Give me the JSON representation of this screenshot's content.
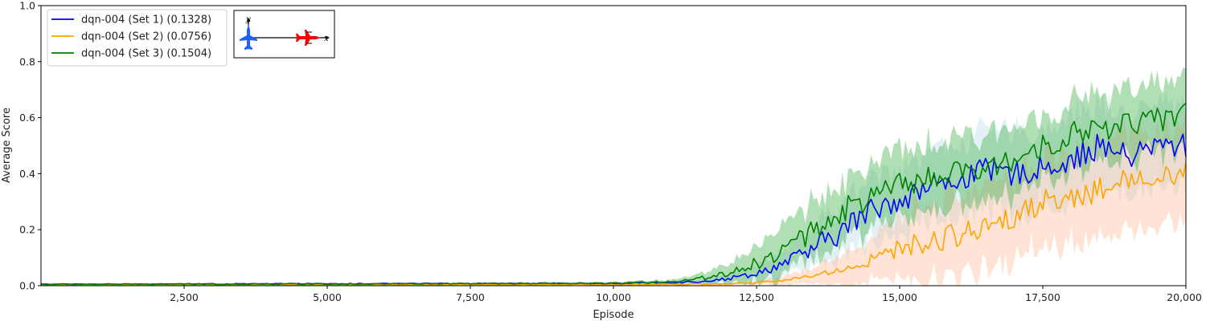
{
  "chart_data": {
    "type": "line",
    "xlabel": "Episode",
    "ylabel": "Average Score",
    "xlim": [
      0,
      20000
    ],
    "ylim": [
      0,
      1.0
    ],
    "x_ticks": [
      2500,
      5000,
      7500,
      10000,
      12500,
      15000,
      17500,
      20000
    ],
    "x_tick_labels": [
      "2,500",
      "5,000",
      "7,500",
      "10,000",
      "12,500",
      "15,000",
      "17,500",
      "20,000"
    ],
    "y_ticks": [
      0,
      0.2,
      0.4,
      0.6,
      0.8,
      1.0
    ],
    "y_tick_labels": [
      "0.0",
      "0.2",
      "0.4",
      "0.6",
      "0.8",
      "1.0"
    ],
    "grid": false,
    "legend_position": "top-left",
    "series": [
      {
        "name": "dqn-004 (Set 1) (0.1328)",
        "color": "#0000ff",
        "band_color": "#add8e6",
        "key_x": [
          0,
          10000,
          11000,
          11500,
          12000,
          12500,
          13000,
          13500,
          14000,
          14500,
          15000,
          15500,
          16000,
          16500,
          17000,
          17500,
          18000,
          18500,
          19000,
          19500,
          20000
        ],
        "key_y": [
          0.005,
          0.008,
          0.012,
          0.015,
          0.025,
          0.045,
          0.08,
          0.13,
          0.2,
          0.27,
          0.31,
          0.35,
          0.38,
          0.41,
          0.4,
          0.42,
          0.45,
          0.5,
          0.46,
          0.5,
          0.5
        ],
        "key_band": [
          0.002,
          0.003,
          0.005,
          0.008,
          0.015,
          0.03,
          0.05,
          0.07,
          0.09,
          0.11,
          0.12,
          0.13,
          0.13,
          0.14,
          0.14,
          0.14,
          0.15,
          0.15,
          0.15,
          0.15,
          0.15
        ]
      },
      {
        "name": "dqn-004 (Set 2) (0.0756)",
        "color": "#ffa500",
        "band_color": "#ffb38a",
        "key_x": [
          0,
          10000,
          11000,
          12000,
          12500,
          13000,
          13500,
          14000,
          14500,
          15000,
          15500,
          16000,
          16500,
          17000,
          17500,
          18000,
          18500,
          19000,
          19500,
          20000
        ],
        "key_y": [
          0.003,
          0.004,
          0.005,
          0.007,
          0.01,
          0.02,
          0.035,
          0.06,
          0.09,
          0.13,
          0.16,
          0.18,
          0.22,
          0.25,
          0.3,
          0.32,
          0.34,
          0.38,
          0.4,
          0.4
        ],
        "key_band": [
          0.002,
          0.002,
          0.003,
          0.004,
          0.006,
          0.015,
          0.03,
          0.05,
          0.08,
          0.11,
          0.13,
          0.14,
          0.15,
          0.15,
          0.16,
          0.16,
          0.16,
          0.17,
          0.17,
          0.17
        ]
      },
      {
        "name": "dqn-004 (Set 3) (0.1504)",
        "color": "#008000",
        "band_color": "#3cb043",
        "key_x": [
          0,
          10000,
          11000,
          11500,
          12000,
          12500,
          13000,
          13500,
          14000,
          14500,
          15000,
          15500,
          16000,
          16500,
          17000,
          17500,
          18000,
          18500,
          19000,
          19500,
          20000
        ],
        "key_y": [
          0.005,
          0.008,
          0.015,
          0.025,
          0.045,
          0.08,
          0.13,
          0.2,
          0.27,
          0.31,
          0.36,
          0.38,
          0.4,
          0.41,
          0.45,
          0.5,
          0.54,
          0.56,
          0.58,
          0.59,
          0.62
        ],
        "key_band": [
          0.003,
          0.004,
          0.008,
          0.015,
          0.035,
          0.06,
          0.09,
          0.1,
          0.11,
          0.11,
          0.12,
          0.12,
          0.12,
          0.12,
          0.12,
          0.12,
          0.12,
          0.12,
          0.12,
          0.12,
          0.12
        ]
      }
    ],
    "inset": {
      "x_label": "x",
      "y_label": "y",
      "left_aircraft_color": "#1f5fff",
      "right_aircraft_color": "#ff0000"
    }
  }
}
